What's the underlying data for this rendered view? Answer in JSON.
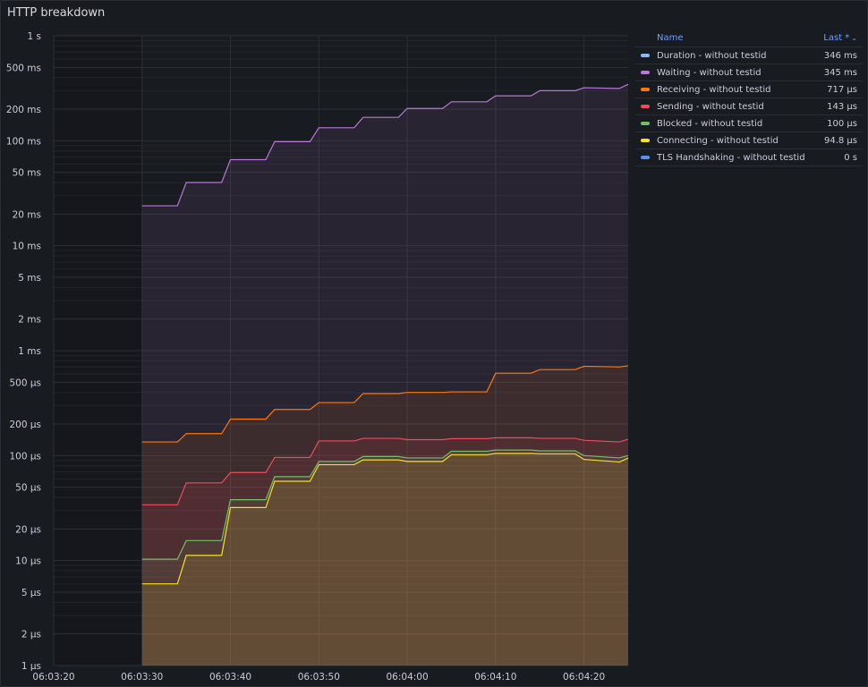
{
  "panel": {
    "title": "HTTP breakdown"
  },
  "legend": {
    "name_header": "Name",
    "last_header": "Last *",
    "sort_icon": "chevron-down-icon",
    "items": [
      {
        "name": "Duration - without testid",
        "last": "346 ms",
        "color": "#8ab8ff"
      },
      {
        "name": "Waiting - without testid",
        "last": "345 ms",
        "color": "#b877d9"
      },
      {
        "name": "Receiving - without testid",
        "last": "717 µs",
        "color": "#ff780a"
      },
      {
        "name": "Sending - without testid",
        "last": "143 µs",
        "color": "#f2495c"
      },
      {
        "name": "Blocked - without testid",
        "last": "100 µs",
        "color": "#73bf69"
      },
      {
        "name": "Connecting - without testid",
        "last": "94.8 µs",
        "color": "#fade2a"
      },
      {
        "name": "TLS Handshaking - without testid",
        "last": "0 s",
        "color": "#5794f2"
      }
    ]
  },
  "chart_data": {
    "type": "area",
    "title": "HTTP breakdown",
    "y_scale": "log",
    "y_unit": "seconds",
    "ylim": [
      1e-06,
      1
    ],
    "y_ticks": [
      {
        "v": 1,
        "label": "1 s"
      },
      {
        "v": 0.5,
        "label": "500 ms"
      },
      {
        "v": 0.2,
        "label": "200 ms"
      },
      {
        "v": 0.1,
        "label": "100 ms"
      },
      {
        "v": 0.05,
        "label": "50 ms"
      },
      {
        "v": 0.02,
        "label": "20 ms"
      },
      {
        "v": 0.01,
        "label": "10 ms"
      },
      {
        "v": 0.005,
        "label": "5 ms"
      },
      {
        "v": 0.002,
        "label": "2 ms"
      },
      {
        "v": 0.001,
        "label": "1 ms"
      },
      {
        "v": 0.0005,
        "label": "500 µs"
      },
      {
        "v": 0.0002,
        "label": "200 µs"
      },
      {
        "v": 0.0001,
        "label": "100 µs"
      },
      {
        "v": 5e-05,
        "label": "50 µs"
      },
      {
        "v": 2e-05,
        "label": "20 µs"
      },
      {
        "v": 1e-05,
        "label": "10 µs"
      },
      {
        "v": 5e-06,
        "label": "5 µs"
      },
      {
        "v": 2e-06,
        "label": "2 µs"
      },
      {
        "v": 1e-06,
        "label": "1 µs"
      }
    ],
    "xlim": [
      "06:03:20",
      "06:04:25"
    ],
    "x_ticks": [
      "06:03:20",
      "06:03:30",
      "06:03:40",
      "06:03:50",
      "06:04:00",
      "06:04:10",
      "06:04:20"
    ],
    "x": [
      "06:03:30",
      "06:03:34",
      "06:03:35",
      "06:03:39",
      "06:03:40",
      "06:03:44",
      "06:03:45",
      "06:03:49",
      "06:03:50",
      "06:03:54",
      "06:03:55",
      "06:03:59",
      "06:04:00",
      "06:04:04",
      "06:04:05",
      "06:04:09",
      "06:04:10",
      "06:04:14",
      "06:04:15",
      "06:04:19",
      "06:04:20",
      "06:04:24",
      "06:04:25"
    ],
    "series": [
      {
        "name": "Waiting - without testid",
        "color": "#b877d9",
        "values": [
          0.024,
          0.024,
          0.04,
          0.04,
          0.066,
          0.066,
          0.098,
          0.098,
          0.133,
          0.133,
          0.167,
          0.167,
          0.203,
          0.203,
          0.235,
          0.235,
          0.268,
          0.268,
          0.3,
          0.3,
          0.32,
          0.315,
          0.345
        ]
      },
      {
        "name": "Receiving - without testid",
        "color": "#ff780a",
        "values": [
          0.000135,
          0.000135,
          0.000162,
          0.000162,
          0.000223,
          0.000223,
          0.000275,
          0.000275,
          0.00032,
          0.00032,
          0.00039,
          0.00039,
          0.0004,
          0.0004,
          0.000405,
          0.000405,
          0.00061,
          0.00061,
          0.00066,
          0.00066,
          0.00071,
          0.0007,
          0.000717
        ]
      },
      {
        "name": "Sending - without testid",
        "color": "#f2495c",
        "values": [
          3.4e-05,
          3.4e-05,
          5.5e-05,
          5.5e-05,
          6.9e-05,
          6.9e-05,
          9.6e-05,
          9.6e-05,
          0.000138,
          0.000138,
          0.000146,
          0.000146,
          0.000142,
          0.000142,
          0.000145,
          0.000145,
          0.000148,
          0.000148,
          0.000146,
          0.000146,
          0.00014,
          0.000135,
          0.000143
        ]
      },
      {
        "name": "Blocked - without testid",
        "color": "#73bf69",
        "values": [
          1.03e-05,
          1.03e-05,
          1.55e-05,
          1.55e-05,
          3.8e-05,
          3.8e-05,
          6.3e-05,
          6.3e-05,
          8.8e-05,
          8.8e-05,
          9.8e-05,
          9.8e-05,
          9.5e-05,
          9.5e-05,
          0.00011,
          0.00011,
          0.000113,
          0.000113,
          0.000111,
          0.000111,
          0.0001,
          9.5e-05,
          0.0001
        ]
      },
      {
        "name": "Connecting - without testid",
        "color": "#fade2a",
        "values": [
          6e-06,
          6e-06,
          1.12e-05,
          1.12e-05,
          3.2e-05,
          3.2e-05,
          5.7e-05,
          5.7e-05,
          8.2e-05,
          8.2e-05,
          9.1e-05,
          9.1e-05,
          8.8e-05,
          8.8e-05,
          0.000102,
          0.000102,
          0.000105,
          0.000105,
          0.000104,
          0.000104,
          9.2e-05,
          8.7e-05,
          9.48e-05
        ]
      }
    ]
  }
}
